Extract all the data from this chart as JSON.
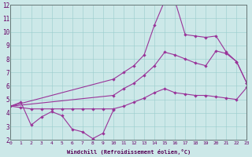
{
  "xlabel": "Windchill (Refroidissement éolien,°C)",
  "xlim": [
    0,
    23
  ],
  "ylim": [
    2,
    12
  ],
  "xticks": [
    0,
    1,
    2,
    3,
    4,
    5,
    6,
    7,
    8,
    9,
    10,
    11,
    12,
    13,
    14,
    15,
    16,
    17,
    18,
    19,
    20,
    21,
    22,
    23
  ],
  "yticks": [
    2,
    3,
    4,
    5,
    6,
    7,
    8,
    9,
    10,
    11,
    12
  ],
  "background_color": "#cce8e8",
  "grid_color": "#99cccc",
  "line_color": "#993399",
  "line1_x": [
    0,
    1,
    2,
    3,
    4,
    5,
    6,
    7,
    8,
    9,
    10
  ],
  "line1_y": [
    4.5,
    4.8,
    3.1,
    3.7,
    4.1,
    3.8,
    2.8,
    2.6,
    2.1,
    2.5,
    4.2
  ],
  "line2_x": [
    0,
    1,
    2,
    3,
    4,
    5,
    6,
    7,
    8,
    9,
    10,
    11,
    12,
    13,
    14,
    15,
    16,
    17,
    18,
    19,
    20,
    21,
    22,
    23
  ],
  "line2_y": [
    4.5,
    4.4,
    4.3,
    4.3,
    4.3,
    4.3,
    4.3,
    4.3,
    4.3,
    4.3,
    4.3,
    4.5,
    4.8,
    5.1,
    5.5,
    5.8,
    5.5,
    5.4,
    5.3,
    5.3,
    5.2,
    5.1,
    5.0,
    5.9
  ],
  "line3_x": [
    0,
    10,
    11,
    12,
    13,
    14,
    15,
    16,
    17,
    18,
    19,
    20,
    21,
    22,
    23
  ],
  "line3_y": [
    4.5,
    5.3,
    5.8,
    6.2,
    6.8,
    7.5,
    8.5,
    8.3,
    8.0,
    7.7,
    7.5,
    8.6,
    8.4,
    7.8,
    6.2
  ],
  "line4_x": [
    0,
    10,
    11,
    12,
    13,
    14,
    15,
    16,
    17,
    18,
    19,
    20,
    21,
    22,
    23
  ],
  "line4_y": [
    4.5,
    6.5,
    7.0,
    7.5,
    8.3,
    10.5,
    12.3,
    12.3,
    9.8,
    9.7,
    9.6,
    9.7,
    8.5,
    7.8,
    6.2
  ]
}
